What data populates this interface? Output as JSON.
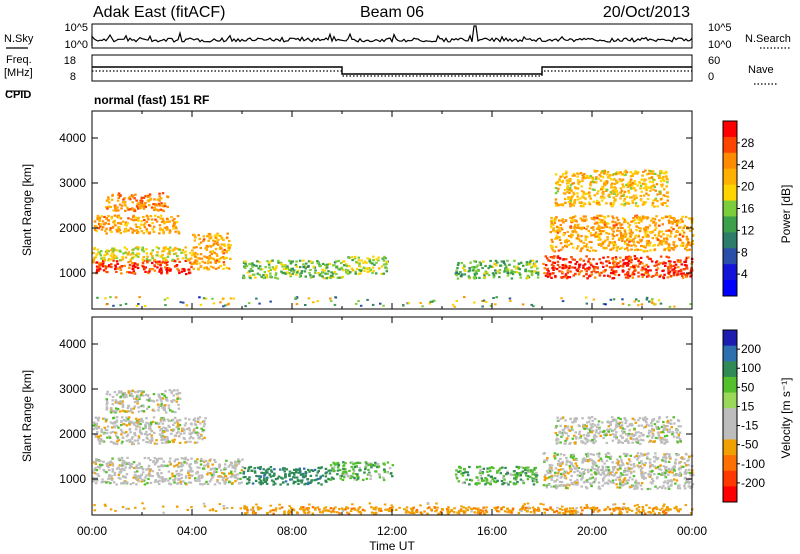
{
  "header": {
    "station": "Adak East (fitACF)",
    "beam": "Beam 06",
    "date": "20/Oct/2013"
  },
  "noise_panel": {
    "left_label": "N.Sky",
    "right_label": "N.Search",
    "left_ticks": [
      "10^5",
      "10^0"
    ],
    "right_ticks": [
      "10^5",
      "10^0"
    ]
  },
  "freq_panel": {
    "left_label_1": "Freq.",
    "left_label_2": "[MHz]",
    "right_label": "Nave",
    "left_ticks": [
      "18",
      "8"
    ],
    "right_ticks": [
      "60",
      "0"
    ]
  },
  "cpid": {
    "label": "CPID",
    "text": "normal (fast) 151 RF"
  },
  "power_colorbar": {
    "title": "Power [dB]",
    "ticks": [
      "28",
      "24",
      "20",
      "16",
      "12",
      "8",
      "4"
    ],
    "colors": [
      "#ff0000",
      "#ff4400",
      "#ff8c00",
      "#ffb000",
      "#ffd400",
      "#7ccd3c",
      "#3c9f4a",
      "#2e7d6b",
      "#2a4fa8",
      "#1414d8",
      "#0000ff"
    ]
  },
  "velocity_colorbar": {
    "title": "Velocity [m s⁻¹]",
    "ticks": [
      "200",
      "100",
      "50",
      "15",
      "-15",
      "-50",
      "-100",
      "-200"
    ],
    "colors": [
      "#1c1cb0",
      "#2e6fb0",
      "#2f8a55",
      "#54c02c",
      "#9ad85a",
      "#bdbdbd",
      "#bdbdbd",
      "#f0a000",
      "#ff7000",
      "#ff3800",
      "#ff0000"
    ]
  },
  "chart_data": [
    {
      "type": "heatmap",
      "name": "power",
      "ylabel": "Slant Range [km]",
      "xlabel": "",
      "xlim_hours": [
        0,
        24
      ],
      "ylim": [
        200,
        4600
      ],
      "yticks": [
        1000,
        2000,
        3000,
        4000
      ],
      "colorbar": "Power [dB]",
      "bands": [
        {
          "t0": 0.0,
          "t1": 4.0,
          "r0": 1000,
          "r1": 1300,
          "db": 28
        },
        {
          "t0": 0.0,
          "t1": 4.0,
          "r0": 1300,
          "r1": 1600,
          "db": 18
        },
        {
          "t0": 0.0,
          "t1": 3.5,
          "r0": 1900,
          "r1": 2300,
          "db": 22
        },
        {
          "t0": 0.5,
          "t1": 3.0,
          "r0": 2400,
          "r1": 2800,
          "db": 24
        },
        {
          "t0": 4.0,
          "t1": 5.5,
          "r0": 1100,
          "r1": 1900,
          "db": 22
        },
        {
          "t0": 6.0,
          "t1": 10.0,
          "r0": 900,
          "r1": 1300,
          "db": 14
        },
        {
          "t0": 10.0,
          "t1": 11.8,
          "r0": 1000,
          "r1": 1400,
          "db": 16
        },
        {
          "t0": 14.5,
          "t1": 17.8,
          "r0": 900,
          "r1": 1300,
          "db": 14
        },
        {
          "t0": 18.0,
          "t1": 24.0,
          "r0": 900,
          "r1": 1400,
          "db": 28
        },
        {
          "t0": 18.3,
          "t1": 24.0,
          "r0": 1500,
          "r1": 2300,
          "db": 22
        },
        {
          "t0": 18.5,
          "t1": 23.0,
          "r0": 2500,
          "r1": 3300,
          "db": 20
        }
      ]
    },
    {
      "type": "heatmap",
      "name": "velocity",
      "ylabel": "Slant Range [km]",
      "xlabel": "Time UT",
      "xlim_hours": [
        0,
        24
      ],
      "xticks": [
        "00:00",
        "04:00",
        "08:00",
        "12:00",
        "16:00",
        "20:00",
        "00:00"
      ],
      "ylim": [
        200,
        4600
      ],
      "yticks": [
        1000,
        2000,
        3000,
        4000
      ],
      "colorbar": "Velocity [m s⁻¹]",
      "bands": [
        {
          "t0": 0.0,
          "t1": 6.0,
          "r0": 900,
          "r1": 1500,
          "v": 0
        },
        {
          "t0": 0.0,
          "t1": 4.5,
          "r0": 1800,
          "r1": 2400,
          "v": 0
        },
        {
          "t0": 0.5,
          "t1": 3.5,
          "r0": 2500,
          "r1": 3000,
          "v": 0
        },
        {
          "t0": 6.0,
          "t1": 9.5,
          "r0": 900,
          "r1": 1300,
          "v": 60
        },
        {
          "t0": 9.5,
          "t1": 12.0,
          "r0": 1000,
          "r1": 1400,
          "v": 25
        },
        {
          "t0": 14.5,
          "t1": 17.8,
          "r0": 900,
          "r1": 1300,
          "v": 30
        },
        {
          "t0": 18.0,
          "t1": 24.0,
          "r0": 800,
          "r1": 1600,
          "v": 0
        },
        {
          "t0": 18.5,
          "t1": 23.5,
          "r0": 1800,
          "r1": 2400,
          "v": 0
        },
        {
          "t0": 6.0,
          "t1": 24.0,
          "r0": 250,
          "r1": 400,
          "v": -40
        }
      ]
    }
  ]
}
